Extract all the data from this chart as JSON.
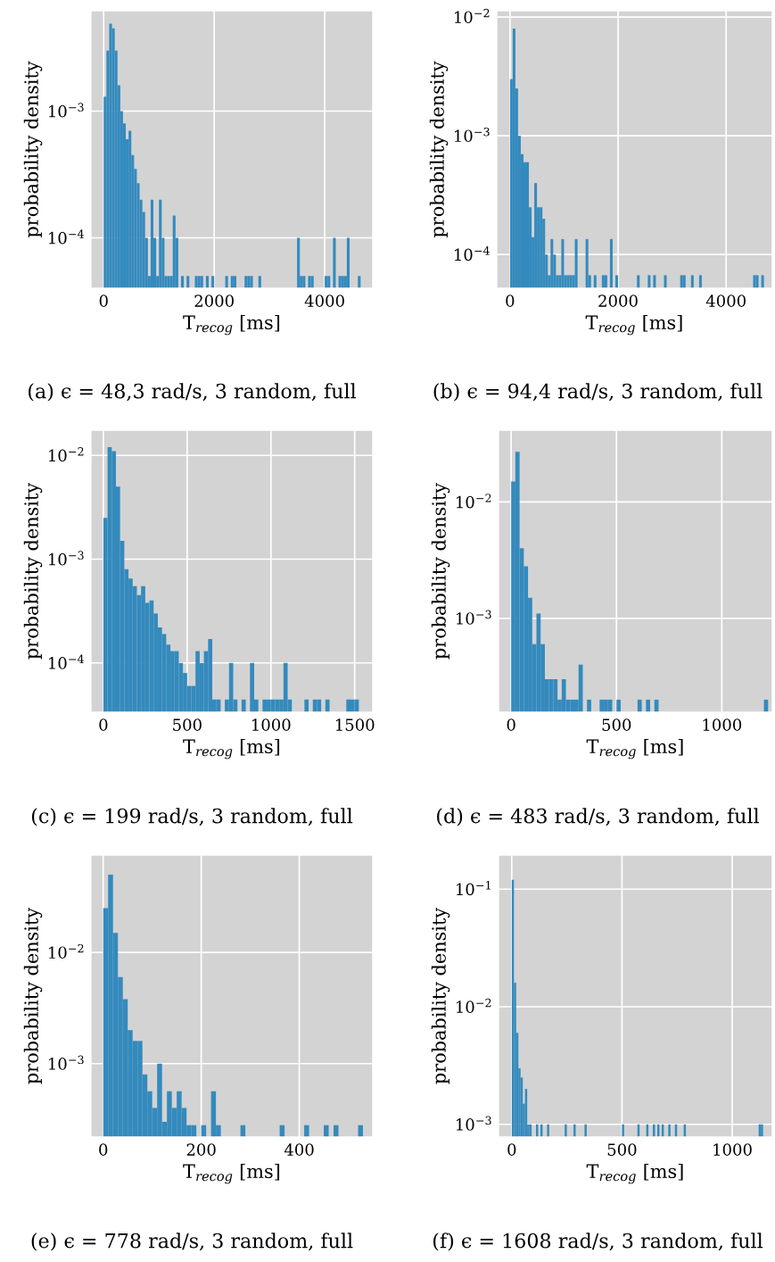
{
  "chart_data": [
    {
      "type": "histogram",
      "xlabel": "T$_{recog}$ [ms]",
      "ylabel": "probability density",
      "color": "#348abd",
      "log": "y",
      "grid": true,
      "xlim": [
        -230,
        4870
      ],
      "xticks": [
        0,
        2000,
        4000
      ],
      "ylim": [
        4e-05,
        0.0062
      ],
      "yticks": [
        {
          "value": 0.001,
          "label": "10$^{−3}$"
        },
        {
          "value": 0.0001,
          "label": "10$^{−4}$"
        }
      ],
      "annotations": [
        "(a) ϵ = 48,3 rad/s, 3 random, full"
      ],
      "bins": [
        0,
        50,
        100,
        150,
        200,
        250,
        300,
        350,
        400,
        450,
        500,
        550,
        600,
        650,
        700,
        750,
        800,
        850,
        900,
        950,
        1000,
        1050,
        1100,
        1150,
        1200,
        1250,
        1300,
        1350,
        1400,
        1450,
        1500,
        1550,
        1600,
        1650,
        1700,
        1750,
        1800,
        1850,
        1900,
        1950,
        2000,
        2050,
        2100,
        2150,
        2200,
        2250,
        2300,
        2350,
        2400,
        2450,
        2500,
        2550,
        2600,
        2650,
        2700,
        2750,
        2800,
        2850,
        2900,
        2950,
        3000,
        3050,
        3100,
        3150,
        3200,
        3250,
        3300,
        3350,
        3400,
        3450,
        3500,
        3550,
        3600,
        3650,
        3700,
        3750,
        3800,
        3850,
        3900,
        3950,
        4000,
        4050,
        4100,
        4150,
        4200,
        4250,
        4300,
        4350,
        4400,
        4450,
        4500,
        4550,
        4600,
        4650
      ],
      "values": [
        0.0013,
        0.003,
        0.0049,
        0.0045,
        0.003,
        0.0016,
        0.001,
        0.0008,
        0.0006,
        0.0007,
        0.00045,
        0.00035,
        0.00027,
        0.0002,
        0.00016,
        0.0001,
        5e-05,
        0.0002,
        0.0001,
        5e-05,
        0.0002,
        0.0001,
        5e-05,
        5e-05,
        5e-05,
        0.00015,
        0.0001,
        null,
        5e-05,
        null,
        5e-05,
        null,
        null,
        5e-05,
        5e-05,
        5e-05,
        null,
        5e-05,
        null,
        5e-05,
        null,
        null,
        null,
        null,
        5e-05,
        null,
        5e-05,
        5e-05,
        null,
        null,
        null,
        5e-05,
        5e-05,
        5e-05,
        null,
        null,
        5e-05,
        null,
        null,
        null,
        null,
        null,
        null,
        null,
        null,
        null,
        null,
        null,
        null,
        null,
        0.0001,
        5e-05,
        5e-05,
        null,
        5e-05,
        5e-05,
        null,
        null,
        null,
        null,
        5e-05,
        5e-05,
        null,
        0.0001,
        null,
        5e-05,
        5e-05,
        5e-05,
        0.0001,
        null,
        null,
        null,
        5e-05
      ]
    },
    {
      "type": "histogram",
      "xlabel": "T$_{recog}$ [ms]",
      "ylabel": "probability density",
      "color": "#348abd",
      "log": "y",
      "grid": true,
      "xlim": [
        -245,
        4855
      ],
      "xticks": [
        0,
        2000,
        4000
      ],
      "ylim": [
        5.2e-05,
        0.0113
      ],
      "yticks": [
        {
          "value": 0.01,
          "label": "10$^{−2}$"
        },
        {
          "value": 0.001,
          "label": "10$^{−3}$"
        },
        {
          "value": 0.0001,
          "label": "10$^{−4}$"
        }
      ],
      "annotations": [
        "(b) ϵ = 94,4 rad/s, 3 random, full"
      ],
      "bins": [
        0,
        50,
        100,
        150,
        200,
        250,
        300,
        350,
        400,
        450,
        500,
        550,
        600,
        650,
        700,
        750,
        800,
        850,
        900,
        950,
        1000,
        1050,
        1100,
        1150,
        1200,
        1250,
        1300,
        1350,
        1400,
        1450,
        1500,
        1550,
        1600,
        1650,
        1700,
        1750,
        1800,
        1850,
        1900,
        1950,
        2000,
        2050,
        2100,
        2150,
        2200,
        2250,
        2300,
        2350,
        2400,
        2450,
        2500,
        2550,
        2600,
        2650,
        2700,
        2750,
        2800,
        2850,
        2900,
        2950,
        3000,
        3050,
        3100,
        3150,
        3200,
        3250,
        3300,
        3350,
        3400,
        3450,
        3500,
        3550,
        3600,
        3650,
        3700,
        3750,
        3800,
        3850,
        3900,
        3950,
        4000,
        4050,
        4100,
        4150,
        4200,
        4250,
        4300,
        4350,
        4400,
        4450,
        4500,
        4550,
        4600,
        4650,
        4700
      ],
      "values": [
        0.003,
        0.008,
        0.0025,
        0.001,
        0.0007,
        0.0006,
        0.0006,
        0.00025,
        0.00014,
        0.0004,
        0.00025,
        0.00025,
        0.0002,
        0.0001,
        6.7e-05,
        0.000135,
        0.0001,
        6.7e-05,
        6.7e-05,
        0.000135,
        6.7e-05,
        6.7e-05,
        6.7e-05,
        6.7e-05,
        0.000135,
        null,
        null,
        null,
        0.000135,
        6.7e-05,
        null,
        6.7e-05,
        null,
        null,
        6.7e-05,
        6.7e-05,
        null,
        0.000135,
        null,
        6.7e-05,
        null,
        null,
        null,
        null,
        null,
        null,
        null,
        6.7e-05,
        null,
        null,
        null,
        6.7e-05,
        null,
        6.7e-05,
        null,
        null,
        null,
        6.7e-05,
        null,
        null,
        null,
        null,
        null,
        6.7e-05,
        6.7e-05,
        null,
        null,
        6.7e-05,
        null,
        null,
        6.7e-05,
        null,
        null,
        null,
        null,
        null,
        null,
        null,
        null,
        null,
        null,
        null,
        null,
        null,
        null,
        null,
        null,
        null,
        null,
        null,
        6.7e-05,
        6.7e-05,
        null,
        6.7e-05
      ]
    },
    {
      "type": "histogram",
      "xlabel": "T$_{recog}$ [ms]",
      "ylabel": "probability density",
      "color": "#348abd",
      "log": "y",
      "grid": true,
      "xlim": [
        -74,
        1608
      ],
      "xticks": [
        0,
        500,
        1000,
        1500
      ],
      "ylim": [
        3.35e-05,
        0.0175
      ],
      "yticks": [
        {
          "value": 0.01,
          "label": "10$^{−2}$"
        },
        {
          "value": 0.001,
          "label": "10$^{−3}$"
        },
        {
          "value": 0.0001,
          "label": "10$^{−4}$"
        }
      ],
      "annotations": [
        "(c) ϵ = 199 rad/s, 3 random, full"
      ],
      "bins": [
        0,
        25,
        50,
        75,
        100,
        125,
        150,
        175,
        200,
        225,
        250,
        275,
        300,
        325,
        350,
        375,
        400,
        425,
        450,
        475,
        500,
        525,
        550,
        575,
        600,
        625,
        650,
        675,
        700,
        725,
        750,
        775,
        800,
        825,
        850,
        875,
        900,
        925,
        950,
        975,
        1000,
        1025,
        1050,
        1075,
        1100,
        1125,
        1150,
        1175,
        1200,
        1225,
        1250,
        1275,
        1300,
        1325,
        1350,
        1375,
        1400,
        1425,
        1450,
        1475,
        1500,
        1525
      ],
      "values": [
        0.0025,
        0.012,
        0.011,
        0.005,
        0.0015,
        0.0008,
        0.00065,
        0.00055,
        0.00045,
        0.00055,
        0.00038,
        0.0004,
        0.0003,
        0.00022,
        0.00019,
        0.00015,
        0.00013,
        0.00013,
        0.0001,
        8e-05,
        6e-05,
        6e-05,
        0.00013,
        0.0001,
        0.00013,
        0.00017,
        4.44e-05,
        4.44e-05,
        null,
        4.44e-05,
        0.0001,
        4.44e-05,
        null,
        4.44e-05,
        null,
        0.0001,
        4.44e-05,
        null,
        4.44e-05,
        4.44e-05,
        4.44e-05,
        4.44e-05,
        4.44e-05,
        0.0001,
        4.44e-05,
        null,
        null,
        null,
        4.44e-05,
        null,
        4.44e-05,
        4.44e-05,
        null,
        4.44e-05,
        null,
        null,
        null,
        null,
        4.44e-05,
        4.44e-05,
        4.44e-05
      ]
    },
    {
      "type": "histogram",
      "xlabel": "T$_{recog}$ [ms]",
      "ylabel": "probability density",
      "color": "#348abd",
      "log": "y",
      "grid": true,
      "xlim": [
        -60,
        1240
      ],
      "xticks": [
        0,
        500,
        1000
      ],
      "ylim": [
        0.000156,
        0.0414
      ],
      "yticks": [
        {
          "value": 0.01,
          "label": "10$^{−2}$"
        },
        {
          "value": 0.001,
          "label": "10$^{−3}$"
        }
      ],
      "annotations": [
        "(d) ϵ = 483 rad/s, 3 random, full"
      ],
      "bins": [
        0,
        20,
        40,
        60,
        80,
        100,
        120,
        140,
        160,
        180,
        200,
        220,
        240,
        260,
        280,
        300,
        320,
        340,
        360,
        380,
        400,
        420,
        440,
        460,
        480,
        500,
        520,
        540,
        560,
        580,
        600,
        620,
        640,
        660,
        680,
        700,
        720,
        740,
        760,
        780,
        800,
        820,
        840,
        860,
        880,
        900,
        920,
        940,
        960,
        980,
        1000,
        1020,
        1040,
        1060,
        1080,
        1100,
        1120,
        1140,
        1160,
        1180,
        1200,
        1220
      ],
      "values": [
        0.015,
        0.027,
        0.004,
        0.0028,
        0.0015,
        0.0006,
        0.0011,
        0.0006,
        0.0003,
        0.0003,
        0.0003,
        0.0002,
        0.0003,
        0.0002,
        0.0002,
        0.0002,
        0.0004,
        null,
        0.0002,
        null,
        null,
        0.0002,
        0.0002,
        0.0002,
        null,
        0.0002,
        null,
        null,
        null,
        null,
        0.0002,
        null,
        0.0002,
        null,
        0.0002,
        null,
        null,
        null,
        null,
        null,
        null,
        null,
        null,
        null,
        null,
        null,
        null,
        null,
        null,
        null,
        null,
        null,
        null,
        null,
        null,
        null,
        null,
        null,
        null,
        null,
        0.0002
      ]
    },
    {
      "type": "histogram",
      "xlabel": "T$_{recog}$ [ms]",
      "ylabel": "probability density",
      "color": "#348abd",
      "log": "y",
      "grid": true,
      "xlim": [
        -25,
        550
      ],
      "xticks": [
        0,
        200,
        400
      ],
      "ylim": [
        0.000219,
        0.075
      ],
      "yticks": [
        {
          "value": 0.01,
          "label": "10$^{−2}$"
        },
        {
          "value": 0.001,
          "label": "10$^{−3}$"
        }
      ],
      "annotations": [
        "(e) ϵ = 778 rad/s, 3 random, full"
      ],
      "bins": [
        0,
        10,
        20,
        30,
        40,
        50,
        60,
        70,
        80,
        90,
        100,
        110,
        120,
        130,
        140,
        150,
        160,
        170,
        180,
        190,
        200,
        210,
        220,
        230,
        240,
        250,
        260,
        270,
        280,
        290,
        300,
        310,
        320,
        330,
        340,
        350,
        360,
        370,
        380,
        390,
        400,
        410,
        420,
        430,
        440,
        450,
        460,
        470,
        480,
        490,
        500,
        510,
        520,
        530
      ],
      "values": [
        0.025,
        0.05,
        0.015,
        0.006,
        0.0038,
        0.002,
        0.0016,
        0.0016,
        0.0008,
        0.000565,
        0.0004,
        0.001,
        0.0003,
        0.000565,
        0.0004,
        0.000565,
        0.0004,
        0.00028,
        0.00028,
        null,
        0.00028,
        null,
        0.000565,
        0.00028,
        null,
        null,
        null,
        null,
        0.00028,
        null,
        null,
        null,
        null,
        null,
        null,
        null,
        0.00028,
        null,
        null,
        null,
        null,
        0.00028,
        null,
        null,
        null,
        0.00028,
        null,
        0.00028,
        null,
        null,
        null,
        null,
        0.00028
      ]
    },
    {
      "type": "histogram",
      "xlabel": "T$_{recog}$ [ms]",
      "ylabel": "probability density",
      "color": "#348abd",
      "log": "y",
      "grid": true,
      "xlim": [
        -60,
        1182
      ],
      "xticks": [
        0,
        500,
        1000
      ],
      "ylim": [
        0.00078,
        0.195
      ],
      "yticks": [
        {
          "value": 0.1,
          "label": "10$^{−1}$"
        },
        {
          "value": 0.01,
          "label": "10$^{−2}$"
        },
        {
          "value": 0.001,
          "label": "10$^{−3}$"
        }
      ],
      "annotations": [
        "(f) ϵ = 1608 rad/s, 3 random, full"
      ],
      "bins": [
        0,
        10,
        20,
        30,
        40,
        50,
        60,
        70,
        80,
        90,
        100,
        110,
        120,
        130,
        140,
        150,
        160,
        170,
        180,
        190,
        200,
        210,
        220,
        230,
        240,
        250,
        260,
        270,
        280,
        290,
        300,
        310,
        320,
        330,
        340,
        350,
        360,
        370,
        380,
        390,
        400,
        410,
        420,
        430,
        440,
        450,
        460,
        470,
        480,
        490,
        500,
        510,
        520,
        530,
        540,
        550,
        560,
        570,
        580,
        590,
        600,
        610,
        620,
        630,
        640,
        650,
        660,
        670,
        680,
        690,
        700,
        710,
        720,
        730,
        740,
        750,
        760,
        770,
        780,
        790,
        800,
        810,
        820,
        830,
        840,
        850,
        860,
        870,
        880,
        890,
        900,
        910,
        920,
        930,
        940,
        950,
        960,
        970,
        980,
        990,
        1000,
        1010,
        1020,
        1030,
        1040,
        1050,
        1060,
        1070,
        1080,
        1090,
        1100,
        1110,
        1120,
        1130,
        1140
      ],
      "values": [
        0.12,
        0.016,
        0.006,
        0.003,
        0.0025,
        0.0015,
        0.002,
        0.001,
        0.001,
        null,
        null,
        0.001,
        null,
        0.001,
        null,
        null,
        0.001,
        null,
        null,
        null,
        null,
        null,
        null,
        null,
        0.001,
        null,
        null,
        null,
        0.001,
        null,
        null,
        null,
        null,
        0.001,
        null,
        null,
        null,
        null,
        null,
        null,
        null,
        null,
        null,
        null,
        null,
        null,
        null,
        null,
        null,
        null,
        0.001,
        null,
        null,
        null,
        null,
        null,
        null,
        0.001,
        null,
        null,
        null,
        0.001,
        null,
        null,
        0.001,
        null,
        0.001,
        null,
        0.001,
        null,
        null,
        0.001,
        null,
        null,
        0.001,
        null,
        null,
        null,
        0.001,
        null,
        null,
        null,
        null,
        null,
        null,
        null,
        null,
        null,
        null,
        null,
        null,
        null,
        null,
        null,
        null,
        null,
        null,
        null,
        null,
        null,
        null,
        null,
        null,
        null,
        null,
        null,
        null,
        null,
        null,
        null,
        null,
        null,
        0.001,
        0.001
      ]
    }
  ]
}
